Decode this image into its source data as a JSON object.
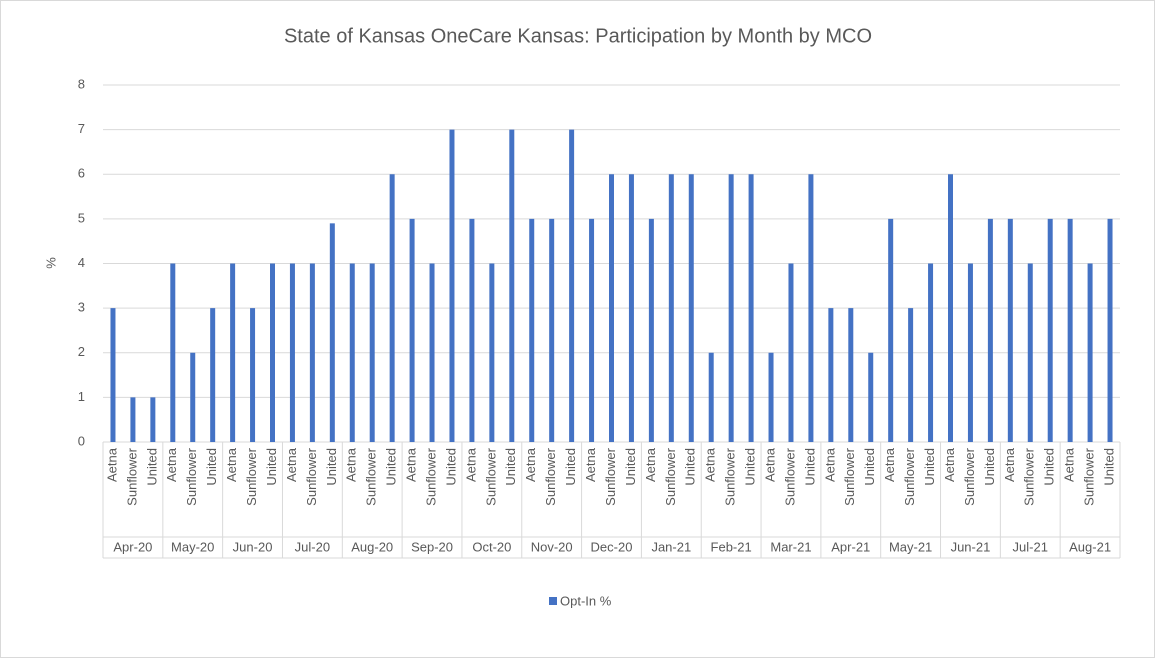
{
  "chart_data": {
    "type": "bar",
    "title": "State of Kansas OneCare Kansas: Participation by Month by MCO",
    "y_label": "%",
    "months": [
      "Apr-20",
      "May-20",
      "Jun-20",
      "Jul-20",
      "Aug-20",
      "Sep-20",
      "Oct-20",
      "Nov-20",
      "Dec-20",
      "Jan-21",
      "Feb-21",
      "Mar-21",
      "Apr-21",
      "May-21",
      "Jun-21",
      "Jul-21",
      "Aug-21"
    ],
    "categories": [
      "Aetna",
      "Sunflower",
      "United",
      "Aetna",
      "Sunflower",
      "United",
      "Aetna",
      "Sunflower",
      "United",
      "Aetna",
      "Sunflower",
      "United",
      "Aetna",
      "Sunflower",
      "United",
      "Aetna",
      "Sunflower",
      "United",
      "Aetna",
      "Sunflower",
      "United",
      "Aetna",
      "Sunflower",
      "United",
      "Aetna",
      "Sunflower",
      "United",
      "Aetna",
      "Sunflower",
      "United",
      "Aetna",
      "Sunflower",
      "United",
      "Aetna",
      "Sunflower",
      "United",
      "Aetna",
      "Sunflower",
      "United",
      "Aetna",
      "Sunflower",
      "United",
      "Aetna",
      "Sunflower",
      "United",
      "Aetna",
      "Sunflower",
      "United",
      "Aetna",
      "Sunflower",
      "United"
    ],
    "series": [
      {
        "name": "Opt-In %",
        "color": "#4472c4",
        "values": [
          3,
          1,
          1,
          4,
          2,
          3,
          4,
          3,
          4,
          4,
          4,
          4.9,
          4,
          4,
          6,
          5,
          4,
          7,
          5,
          4,
          7,
          5,
          5,
          7,
          5,
          6,
          6,
          5,
          6,
          6,
          2,
          6,
          6,
          2,
          4,
          6,
          3,
          3,
          2,
          5,
          3,
          4,
          6,
          4,
          5,
          5,
          4,
          5,
          5,
          4,
          5
        ]
      }
    ],
    "ylim": [
      0,
      8
    ],
    "yticks": [
      0,
      1,
      2,
      3,
      4,
      5,
      6,
      7,
      8
    ],
    "grid": true,
    "legend": "bottom"
  }
}
